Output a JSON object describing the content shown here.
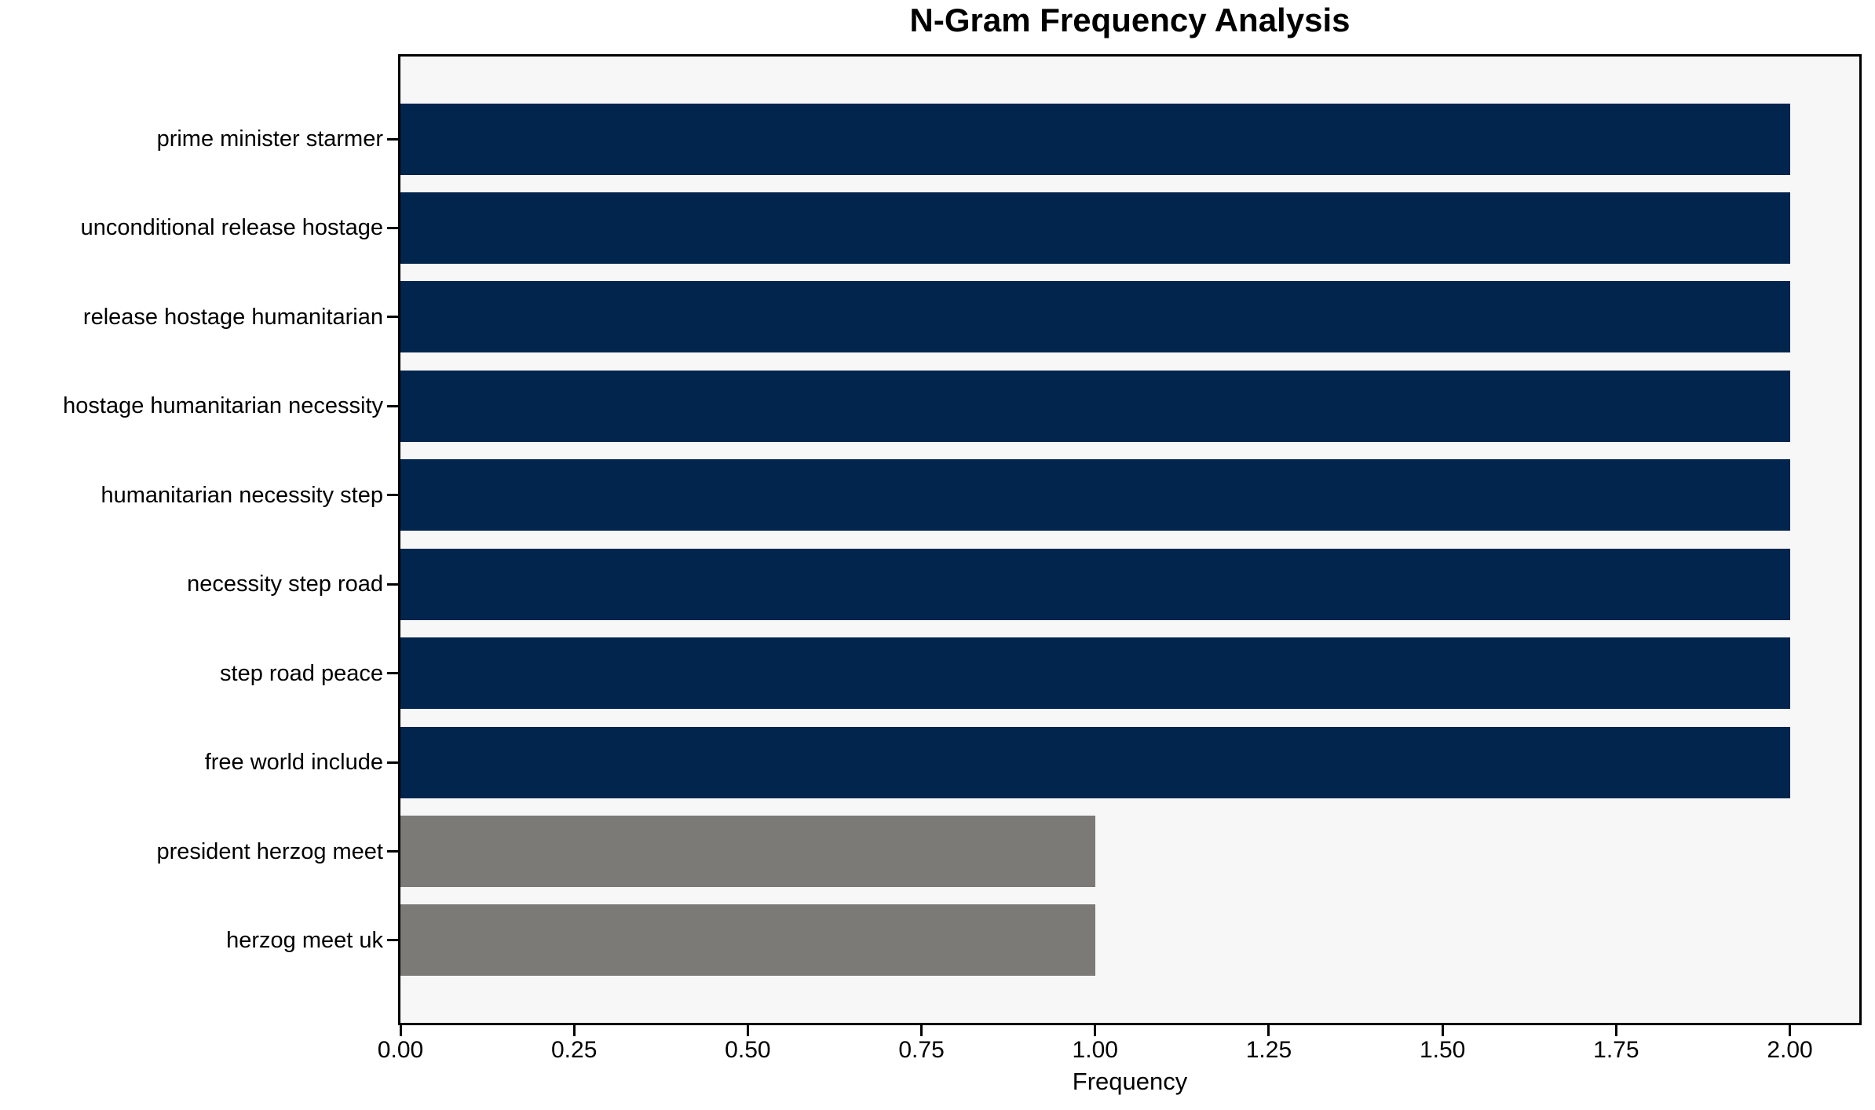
{
  "chart_data": {
    "type": "bar",
    "orientation": "horizontal",
    "title": "N-Gram Frequency Analysis",
    "xlabel": "Frequency",
    "ylabel": "",
    "categories": [
      "prime minister starmer",
      "unconditional release hostage",
      "release hostage humanitarian",
      "hostage humanitarian necessity",
      "humanitarian necessity step",
      "necessity step road",
      "step road peace",
      "free world include",
      "president herzog meet",
      "herzog meet uk"
    ],
    "values": [
      2,
      2,
      2,
      2,
      2,
      2,
      2,
      2,
      1,
      1
    ],
    "bar_colors": [
      "#02254e",
      "#02254e",
      "#02254e",
      "#02254e",
      "#02254e",
      "#02254e",
      "#02254e",
      "#02254e",
      "#7b7a77",
      "#7b7a77"
    ],
    "xlim": [
      0,
      2.1
    ],
    "xticks": [
      0,
      0.25,
      0.5,
      0.75,
      1,
      1.25,
      1.5,
      1.75,
      2
    ],
    "xtick_labels": [
      "0.00",
      "0.25",
      "0.50",
      "0.75",
      "1.00",
      "1.25",
      "1.50",
      "1.75",
      "2.00"
    ],
    "grid": false,
    "legend_position": "none",
    "plot_background": "#f7f7f7",
    "figure_background": "#ffffff",
    "axis_color": "#000000",
    "color_meaning": {
      "frequency_2": "#02254e",
      "frequency_1": "#7b7a77"
    }
  }
}
